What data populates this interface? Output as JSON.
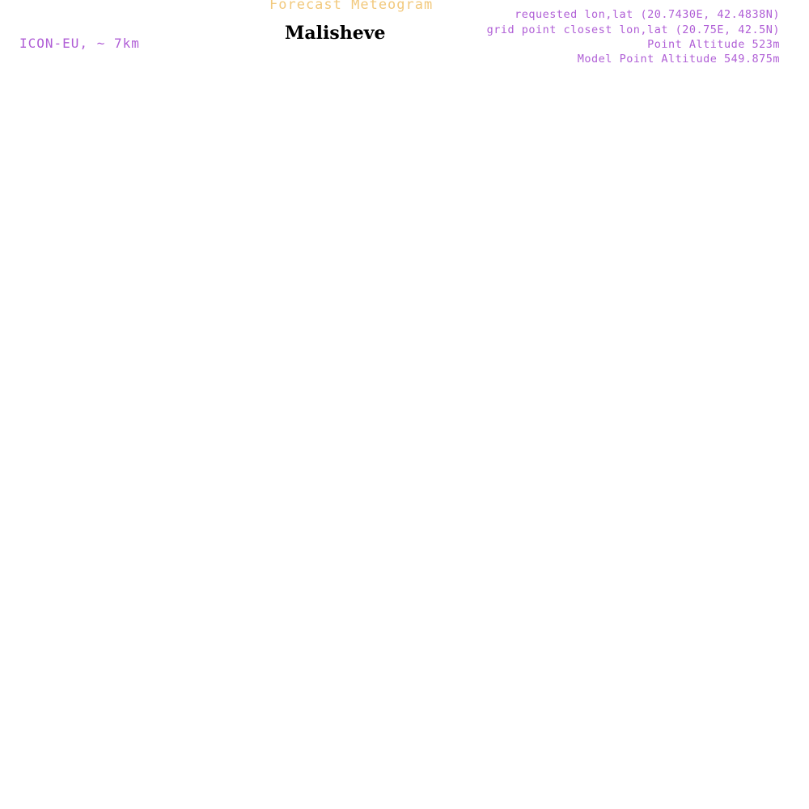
{
  "header": {
    "forecast_title": "Forecast Meteogram",
    "location": "Malisheve",
    "model": "ICON-EU, ~ 7km",
    "requested": "requested lon,lat (20.7430E, 42.4838N)",
    "grid_point": "grid point closest lon,lat (20.75E, 42.5N)",
    "point_altitude": "Point Altitude 523m",
    "model_altitude": "Model Point Altitude 549.875m"
  }
}
